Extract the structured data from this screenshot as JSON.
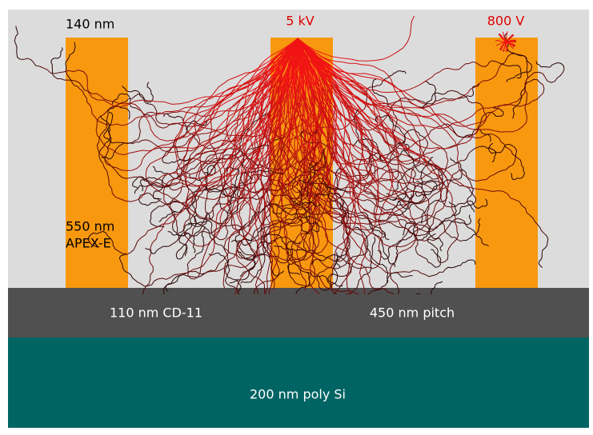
{
  "labels": {
    "top_width": "140 nm",
    "beam_high": "5 kV",
    "beam_low": "800 V",
    "resist_height": "550 nm",
    "resist_name": "APEX-E",
    "underlayer": "110 nm CD-11",
    "pitch": "450 nm pitch",
    "substrate": "200 nm poly Si"
  }
}
